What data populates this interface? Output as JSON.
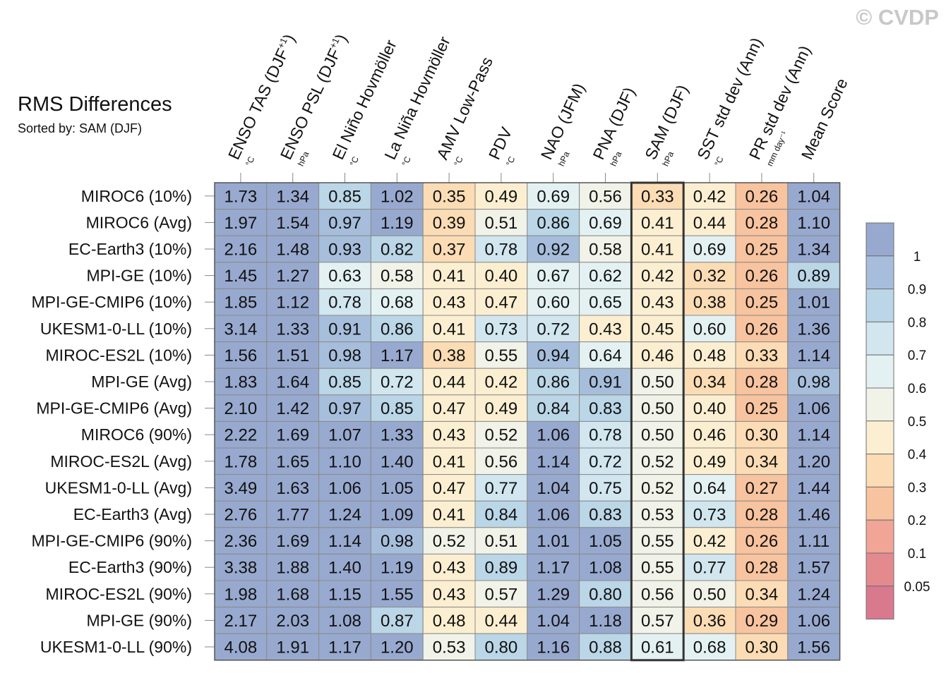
{
  "watermark": "© CVDP",
  "title": "RMS Differences",
  "subtitle": "Sorted by: SAM (DJF)",
  "chart_data": {
    "type": "heatmap",
    "title": "RMS Differences",
    "subtitle": "Sorted by: SAM (DJF)",
    "highlight_column": "SAM (DJF)",
    "columns": [
      {
        "label": "ENSO TAS (DJF",
        "sup": "+1",
        "unit": "°C"
      },
      {
        "label": "ENSO PSL (DJF",
        "sup": "+1",
        "unit": "hPa"
      },
      {
        "label": "El Niño Hovmöller",
        "sup": "",
        "unit": "°C"
      },
      {
        "label": "La Niña Hovmöller",
        "sup": "",
        "unit": "°C"
      },
      {
        "label": "AMV Low-Pass",
        "sup": "",
        "unit": "°C"
      },
      {
        "label": "PDV",
        "sup": "",
        "unit": "°C"
      },
      {
        "label": "NAO (JFM)",
        "sup": "",
        "unit": "hPa"
      },
      {
        "label": "PNA (DJF)",
        "sup": "",
        "unit": "hPa"
      },
      {
        "label": "SAM (DJF)",
        "sup": "",
        "unit": "hPa"
      },
      {
        "label": "SST std dev (Ann)",
        "sup": "",
        "unit": "°C"
      },
      {
        "label": "PR std dev (Ann)",
        "sup": "",
        "unit": "mm day⁻¹"
      },
      {
        "label": "Mean Score",
        "sup": "",
        "unit": ""
      }
    ],
    "rows": [
      {
        "name": "MIROC6 (10%)",
        "values": [
          1.73,
          1.34,
          0.85,
          1.02,
          0.35,
          0.49,
          0.69,
          0.56,
          0.33,
          0.42,
          0.26,
          1.04
        ]
      },
      {
        "name": "MIROC6 (Avg)",
        "values": [
          1.97,
          1.54,
          0.97,
          1.19,
          0.39,
          0.51,
          0.86,
          0.69,
          0.41,
          0.44,
          0.28,
          1.1
        ]
      },
      {
        "name": "EC-Earth3 (10%)",
        "values": [
          2.16,
          1.48,
          0.93,
          0.82,
          0.37,
          0.78,
          0.92,
          0.58,
          0.41,
          0.69,
          0.25,
          1.34
        ]
      },
      {
        "name": "MPI-GE (10%)",
        "values": [
          1.45,
          1.27,
          0.63,
          0.58,
          0.41,
          0.4,
          0.67,
          0.62,
          0.42,
          0.32,
          0.26,
          0.89
        ]
      },
      {
        "name": "MPI-GE-CMIP6 (10%)",
        "values": [
          1.85,
          1.12,
          0.78,
          0.68,
          0.43,
          0.47,
          0.6,
          0.65,
          0.43,
          0.38,
          0.25,
          1.01
        ]
      },
      {
        "name": "UKESM1-0-LL (10%)",
        "values": [
          3.14,
          1.33,
          0.91,
          0.86,
          0.41,
          0.73,
          0.72,
          0.43,
          0.45,
          0.6,
          0.26,
          1.36
        ]
      },
      {
        "name": "MIROC-ES2L (10%)",
        "values": [
          1.56,
          1.51,
          0.98,
          1.17,
          0.38,
          0.55,
          0.94,
          0.64,
          0.46,
          0.48,
          0.33,
          1.14
        ]
      },
      {
        "name": "MPI-GE (Avg)",
        "values": [
          1.83,
          1.64,
          0.85,
          0.72,
          0.44,
          0.42,
          0.86,
          0.91,
          0.5,
          0.34,
          0.28,
          0.98
        ]
      },
      {
        "name": "MPI-GE-CMIP6 (Avg)",
        "values": [
          2.1,
          1.42,
          0.97,
          0.85,
          0.47,
          0.49,
          0.84,
          0.83,
          0.5,
          0.4,
          0.25,
          1.06
        ]
      },
      {
        "name": "MIROC6 (90%)",
        "values": [
          2.22,
          1.69,
          1.07,
          1.33,
          0.43,
          0.52,
          1.06,
          0.78,
          0.5,
          0.46,
          0.3,
          1.14
        ]
      },
      {
        "name": "MIROC-ES2L (Avg)",
        "values": [
          1.78,
          1.65,
          1.1,
          1.4,
          0.41,
          0.56,
          1.14,
          0.72,
          0.52,
          0.49,
          0.34,
          1.2
        ]
      },
      {
        "name": "UKESM1-0-LL (Avg)",
        "values": [
          3.49,
          1.63,
          1.06,
          1.05,
          0.47,
          0.77,
          1.04,
          0.75,
          0.52,
          0.64,
          0.27,
          1.44
        ]
      },
      {
        "name": "EC-Earth3 (Avg)",
        "values": [
          2.76,
          1.77,
          1.24,
          1.09,
          0.41,
          0.84,
          1.06,
          0.83,
          0.53,
          0.73,
          0.28,
          1.46
        ]
      },
      {
        "name": "MPI-GE-CMIP6 (90%)",
        "values": [
          2.36,
          1.69,
          1.14,
          0.98,
          0.52,
          0.51,
          1.01,
          1.05,
          0.55,
          0.42,
          0.26,
          1.11
        ]
      },
      {
        "name": "EC-Earth3 (90%)",
        "values": [
          3.38,
          1.88,
          1.4,
          1.19,
          0.43,
          0.89,
          1.17,
          1.08,
          0.55,
          0.77,
          0.28,
          1.57
        ]
      },
      {
        "name": "MIROC-ES2L (90%)",
        "values": [
          1.98,
          1.68,
          1.15,
          1.55,
          0.43,
          0.57,
          1.29,
          0.8,
          0.56,
          0.5,
          0.34,
          1.24
        ]
      },
      {
        "name": "MPI-GE (90%)",
        "values": [
          2.17,
          2.03,
          1.08,
          0.87,
          0.48,
          0.44,
          1.04,
          1.18,
          0.57,
          0.36,
          0.29,
          1.06
        ]
      },
      {
        "name": "UKESM1-0-LL (90%)",
        "values": [
          4.08,
          1.91,
          1.17,
          1.2,
          0.53,
          0.8,
          1.16,
          0.88,
          0.61,
          0.68,
          0.3,
          1.56
        ]
      }
    ],
    "colorbar": {
      "labels": [
        "1",
        "0.9",
        "0.8",
        "0.7",
        "0.6",
        "0.5",
        "0.4",
        "0.3",
        "0.2",
        "0.1",
        "0.05"
      ],
      "thresholds": [
        1.0,
        0.9,
        0.8,
        0.7,
        0.6,
        0.5,
        0.4,
        0.3,
        0.2,
        0.1,
        0.05
      ],
      "colors": [
        "#98a9cf",
        "#a6bedc",
        "#bad6e7",
        "#d1e6ef",
        "#e4f1f3",
        "#f1f2e8",
        "#fcefd1",
        "#fbdcb4",
        "#f8c39f",
        "#f0a596",
        "#e48a8e",
        "#d9798e"
      ]
    }
  }
}
